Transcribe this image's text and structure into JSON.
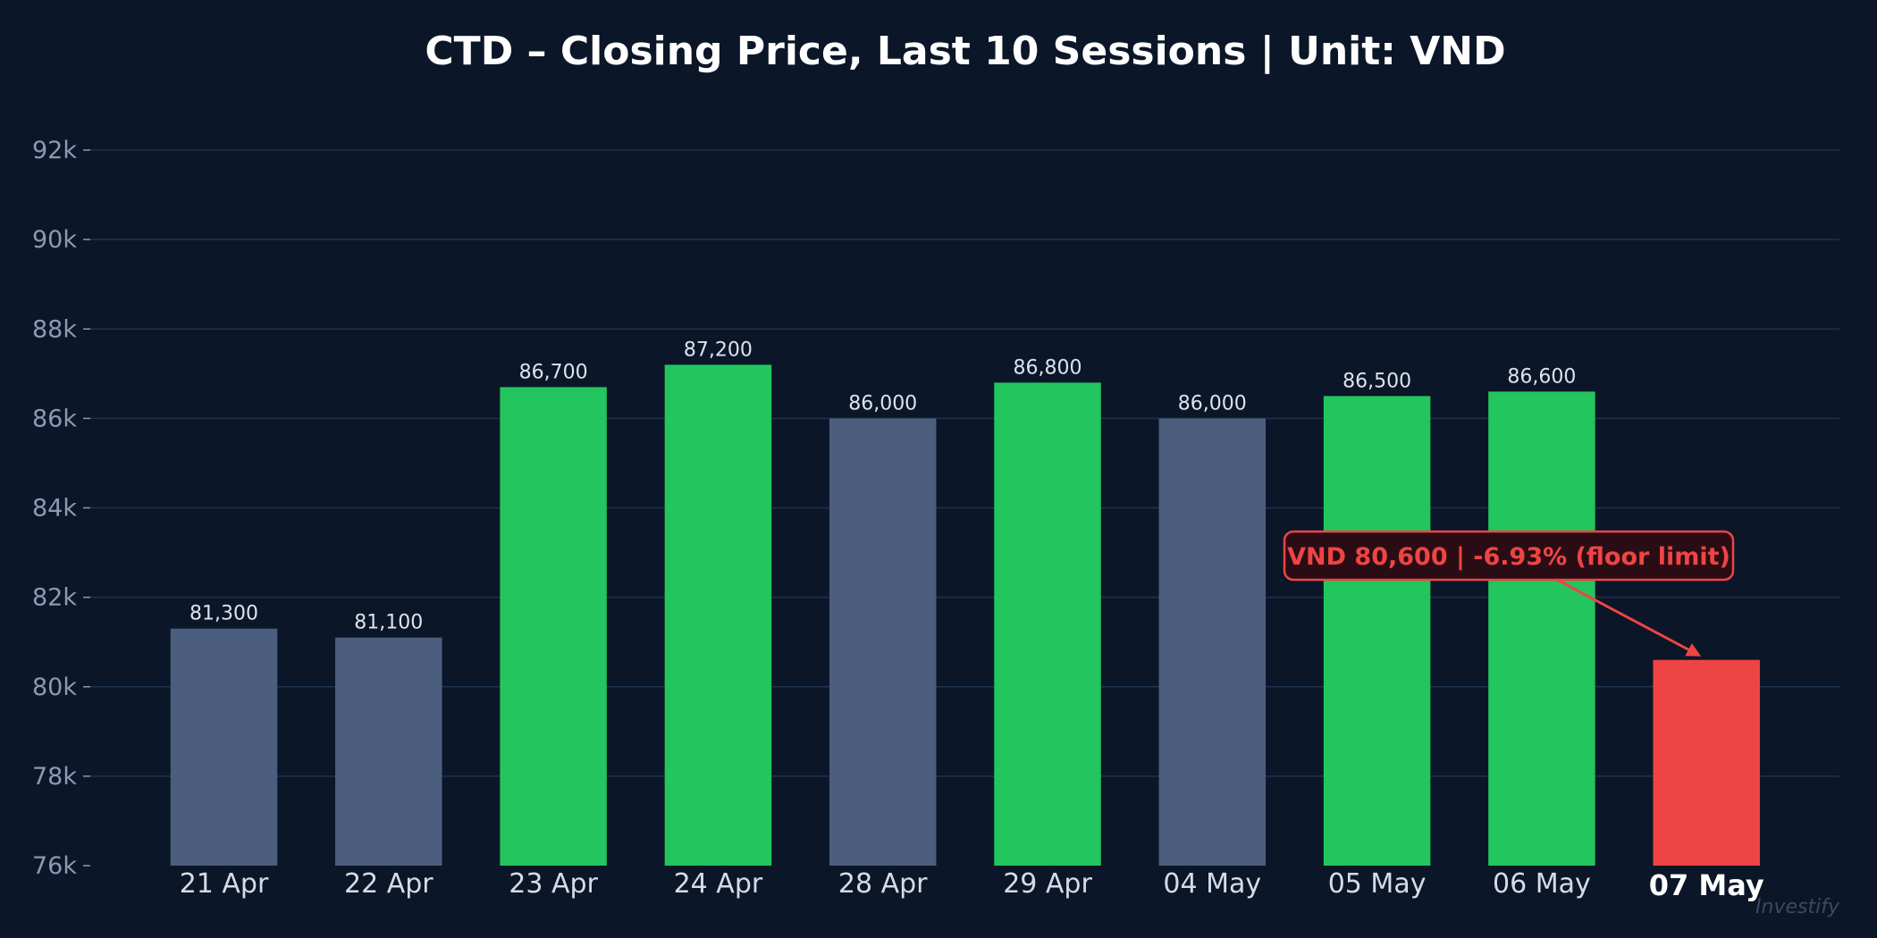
{
  "chart_data": {
    "type": "bar",
    "title": "CTD – Closing Price, Last 10 Sessions | Unit: VND",
    "xlabel": "",
    "ylabel": "",
    "ylim": [
      76000,
      92000
    ],
    "yticks": [
      76000,
      78000,
      80000,
      82000,
      84000,
      86000,
      88000,
      90000,
      92000
    ],
    "ytick_labels": [
      "76k",
      "78k",
      "80k",
      "82k",
      "84k",
      "86k",
      "88k",
      "90k",
      "92k"
    ],
    "grid": true,
    "categories": [
      "21 Apr",
      "22 Apr",
      "23 Apr",
      "24 Apr",
      "28 Apr",
      "29 Apr",
      "04 May",
      "05 May",
      "06 May",
      "07 May"
    ],
    "values": [
      81300,
      81100,
      86700,
      87200,
      86000,
      86800,
      86000,
      86500,
      86600,
      80600
    ],
    "data_labels": [
      "81,300",
      "81,100",
      "86,700",
      "87,200",
      "86,000",
      "86,800",
      "86,000",
      "86,500",
      "86,600",
      ""
    ],
    "bar_colors": [
      "#4b5e7d",
      "#4b5e7d",
      "#22c55e",
      "#22c55e",
      "#4b5e7d",
      "#22c55e",
      "#4b5e7d",
      "#22c55e",
      "#22c55e",
      "#ef4444"
    ],
    "highlight_index": 9,
    "annotation": {
      "text": "VND 80,600  |  -6.93% (floor limit)",
      "target_index": 9,
      "color": "#ef4444"
    },
    "watermark": "Investify",
    "colors": {
      "background": "#0b1628",
      "grid": "#1c3350",
      "neutral": "#4b5e7d",
      "up": "#22c55e",
      "down": "#ef4444"
    }
  }
}
